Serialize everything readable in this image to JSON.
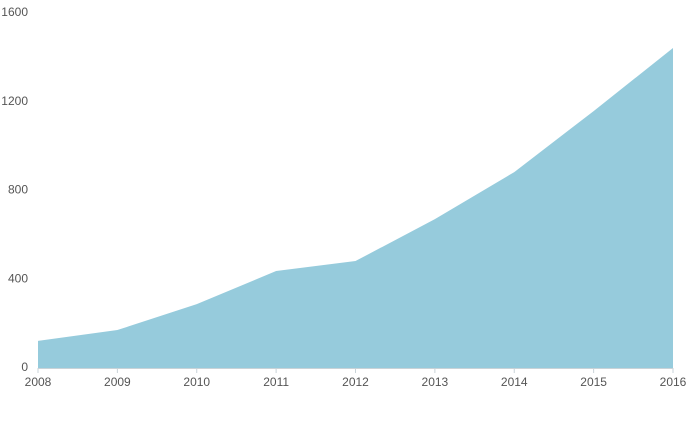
{
  "chart_data": {
    "type": "area",
    "categories": [
      "2008",
      "2009",
      "2010",
      "2011",
      "2012",
      "2013",
      "2014",
      "2015",
      "2016"
    ],
    "values": [
      122,
      171,
      288,
      437,
      482,
      671,
      883,
      1158,
      1442
    ],
    "color": "#96cbdc",
    "ylim": [
      0,
      1600
    ],
    "yticks": [
      0,
      400,
      800,
      1200,
      1600
    ],
    "grid": false
  }
}
